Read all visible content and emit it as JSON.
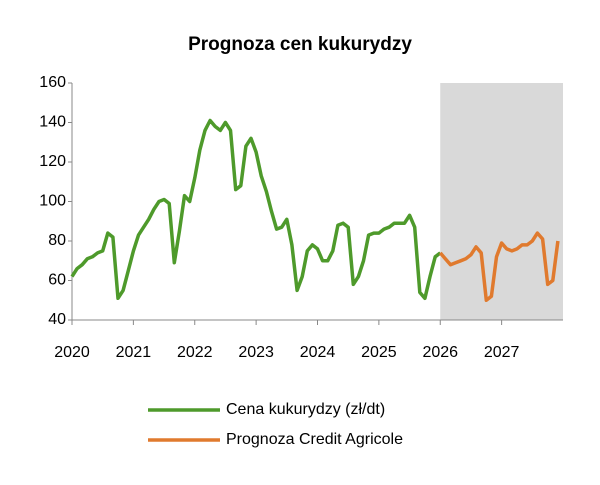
{
  "chart_data": {
    "type": "line",
    "title": "Prognoza cen kukurydzy",
    "x": [
      2020,
      2020.083,
      2020.167,
      2020.25,
      2020.333,
      2020.417,
      2020.5,
      2020.583,
      2020.667,
      2020.75,
      2020.833,
      2020.917,
      2021,
      2021.083,
      2021.167,
      2021.25,
      2021.333,
      2021.417,
      2021.5,
      2021.583,
      2021.667,
      2021.75,
      2021.833,
      2021.917,
      2022,
      2022.083,
      2022.167,
      2022.25,
      2022.333,
      2022.417,
      2022.5,
      2022.583,
      2022.667,
      2022.75,
      2022.833,
      2022.917,
      2023,
      2023.083,
      2023.167,
      2023.25,
      2023.333,
      2023.417,
      2023.5,
      2023.583,
      2023.667,
      2023.75,
      2023.833,
      2023.917,
      2024,
      2024.083,
      2024.167,
      2024.25,
      2024.333,
      2024.417,
      2024.5,
      2024.583,
      2024.667,
      2024.75,
      2024.833,
      2024.917,
      2025,
      2025.083,
      2025.167,
      2025.25,
      2025.333,
      2025.417,
      2025.5,
      2025.583,
      2025.667,
      2025.75,
      2025.833,
      2025.917,
      2026,
      2026.083,
      2026.167,
      2026.25,
      2026.333,
      2026.417,
      2026.5,
      2026.583,
      2026.667,
      2026.75,
      2026.833,
      2026.917,
      2027,
      2027.083,
      2027.167,
      2027.25,
      2027.333,
      2027.417,
      2027.5,
      2027.583,
      2027.667,
      2027.75,
      2027.833,
      2027.917
    ],
    "series": [
      {
        "name": "Cena kukurydzy (zł/dt)",
        "color": "#4e9a2b",
        "values": [
          62,
          66,
          68,
          71,
          72,
          74,
          75,
          84,
          82,
          51,
          55,
          65,
          75,
          83,
          87,
          91,
          96,
          100,
          101,
          99,
          69,
          85,
          103,
          100,
          112,
          126,
          136,
          141,
          138,
          136,
          140,
          136,
          106,
          108,
          128,
          132,
          125,
          113,
          105,
          95,
          86,
          87,
          91,
          78,
          55,
          62,
          75,
          78,
          76,
          70,
          70,
          75,
          88,
          89,
          87,
          58,
          62,
          70,
          83,
          84,
          84,
          86,
          87,
          89,
          89,
          89,
          93,
          87,
          54,
          51,
          62,
          72,
          74,
          null,
          null,
          null,
          null,
          null,
          null,
          null,
          null,
          null,
          null,
          null,
          null,
          null,
          null,
          null,
          null,
          null,
          null,
          null,
          null,
          null,
          null,
          null
        ]
      },
      {
        "name": "Prognoza Credit Agricole",
        "color": "#e07a2e",
        "values": [
          null,
          null,
          null,
          null,
          null,
          null,
          null,
          null,
          null,
          null,
          null,
          null,
          null,
          null,
          null,
          null,
          null,
          null,
          null,
          null,
          null,
          null,
          null,
          null,
          null,
          null,
          null,
          null,
          null,
          null,
          null,
          null,
          null,
          null,
          null,
          null,
          null,
          null,
          null,
          null,
          null,
          null,
          null,
          null,
          null,
          null,
          null,
          null,
          null,
          null,
          null,
          null,
          null,
          null,
          null,
          null,
          null,
          null,
          null,
          null,
          null,
          null,
          null,
          null,
          null,
          null,
          null,
          null,
          null,
          null,
          null,
          null,
          74,
          71,
          68,
          69,
          70,
          71,
          73,
          77,
          74,
          50,
          52,
          72,
          79,
          76,
          75,
          76,
          78,
          78,
          80,
          84,
          81,
          58,
          60,
          80
        ]
      }
    ],
    "xlim": [
      2020,
      2028
    ],
    "xticks": [
      2020,
      2021,
      2022,
      2023,
      2024,
      2025,
      2026,
      2027
    ],
    "ylim": [
      40,
      160
    ],
    "yticks": [
      40,
      60,
      80,
      100,
      120,
      140,
      160
    ],
    "shaded_region": [
      2026,
      2028
    ],
    "shade_color": "#d9d9d9",
    "grid": false
  }
}
